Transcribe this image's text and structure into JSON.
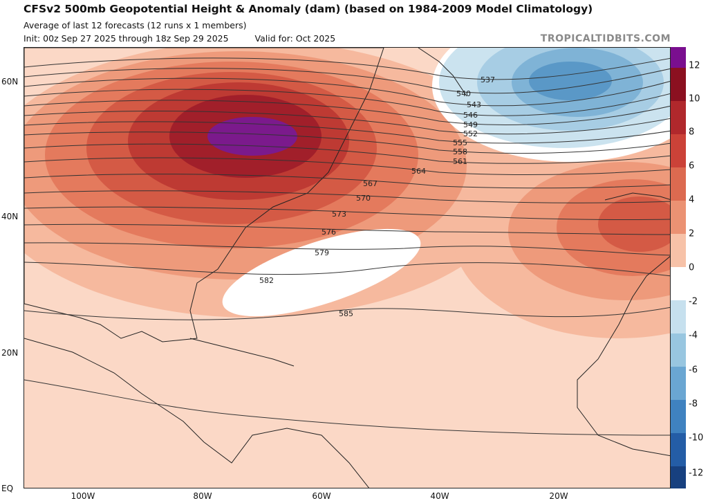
{
  "header": {
    "title": "CFSv2 500mb Geopotential Height & Anomaly (dam) (based on 1984-2009 Model Climatology)",
    "subtitle": "Average of last 12 forecasts (12 runs x 1 members)",
    "init": "Init: 00z Sep 27 2025 through 18z Sep 29 2025",
    "valid": "Valid for: Oct 2025",
    "brand": "TROPICALTIDBITS.COM"
  },
  "axes": {
    "lat_labels": [
      "60N",
      "40N",
      "20N",
      "EQ"
    ],
    "lon_labels": [
      "100W",
      "80W",
      "60W",
      "40W",
      "20W"
    ]
  },
  "contours": {
    "labels": [
      "537",
      "540",
      "543",
      "546",
      "549",
      "552",
      "555",
      "558",
      "561",
      "564",
      "567",
      "570",
      "573",
      "576",
      "579",
      "582",
      "585"
    ]
  },
  "colorbar": {
    "labels": [
      "12",
      "10",
      "8",
      "6",
      "4",
      "2",
      "0",
      "-2",
      "-4",
      "-6",
      "-8",
      "-10",
      "-12"
    ],
    "colors": [
      "#7a0f8f",
      "#8b1020",
      "#b0282c",
      "#cb4238",
      "#dc6a50",
      "#eb9273",
      "#f7c2a8",
      "#ffffff",
      "#c6e0ee",
      "#98c6e0",
      "#6aa6d2",
      "#3f82c0",
      "#245da6",
      "#17407f"
    ]
  },
  "map_layers": {
    "anomaly_colors": {
      "warm_faint": "#fbd8c6",
      "warm_1": "#f6b99e",
      "warm_2": "#ee9a7b",
      "warm_3": "#e47a5d",
      "warm_4": "#d45a45",
      "warm_5": "#be3a33",
      "warm_6": "#a11f2a",
      "peak": "#7b1a8c",
      "neutral": "#ffffff",
      "cool_1": "#cbe3ef",
      "cool_2": "#a7cde4",
      "cool_3": "#7fb3d6",
      "cool_4": "#5a98c7"
    }
  }
}
